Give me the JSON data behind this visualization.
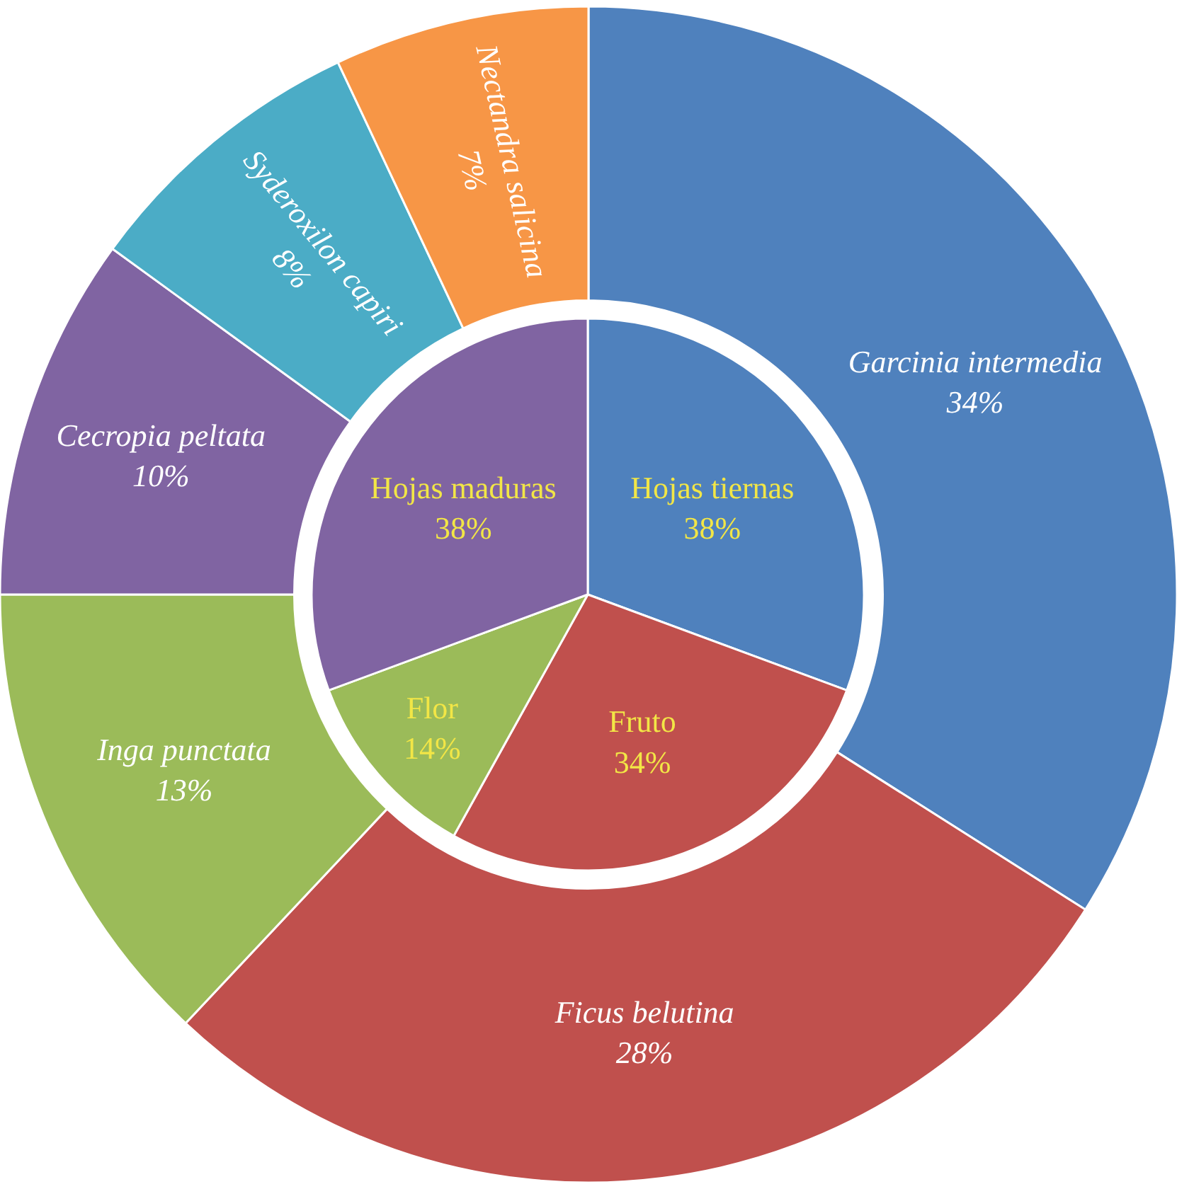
{
  "chart_data": [
    {
      "type": "donut",
      "categories": [
        "Garcinia intermedia",
        "Ficus belutina",
        "Inga punctata",
        "Cecropia peltata",
        "Syderoxilon capiri",
        "Nectandra salicina"
      ],
      "values": [
        34,
        28,
        13,
        10,
        8,
        7
      ],
      "value_labels": [
        "34%",
        "28%",
        "13%",
        "10%",
        "8%",
        "7%"
      ],
      "colors": [
        "#4f81bd",
        "#c0504d",
        "#9bbb59",
        "#8064a2",
        "#4bacc6",
        "#f79646"
      ],
      "legend": false
    },
    {
      "type": "pie",
      "categories": [
        "Hojas tiernas",
        "Fruto",
        "Flor",
        "Hojas maduras"
      ],
      "values": [
        38,
        34,
        14,
        38
      ],
      "value_labels": [
        "38%",
        "34%",
        "14%",
        "38%"
      ],
      "colors": [
        "#4f81bd",
        "#c0504d",
        "#9bbb59",
        "#8064a2"
      ],
      "legend": false
    }
  ]
}
